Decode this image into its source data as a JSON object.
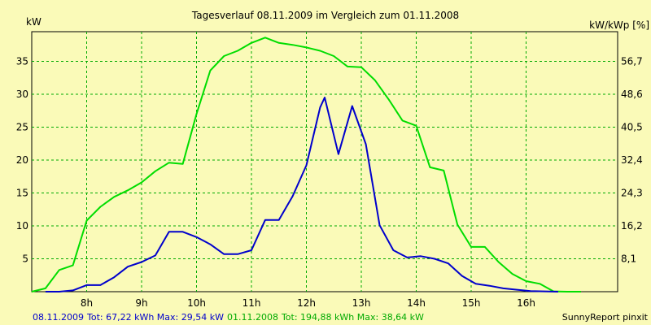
{
  "chart_data": {
    "type": "line",
    "title": "Tagesverlauf 08.11.2009 im Vergleich zum 01.11.2008",
    "ylabel_left": "kW",
    "ylabel_right": "kW/kWp [%]",
    "x_range": [
      "07:00",
      "17:40"
    ],
    "x_ticks": [
      "8h",
      "9h",
      "10h",
      "11h",
      "12h",
      "13h",
      "14h",
      "15h",
      "16h"
    ],
    "x_tick_hours": [
      8,
      9,
      10,
      11,
      12,
      13,
      14,
      15,
      16
    ],
    "ylim": [
      0,
      39.5
    ],
    "y_ticks_left": [
      5,
      10,
      15,
      20,
      25,
      30,
      35
    ],
    "y_ticks_right": [
      {
        "value": 5.0,
        "label": "8,1"
      },
      {
        "value": 10.0,
        "label": "16,2"
      },
      {
        "value": 15.0,
        "label": "24,3"
      },
      {
        "value": 20.0,
        "label": "32,4"
      },
      {
        "value": 25.0,
        "label": "40,5"
      },
      {
        "value": 30.0,
        "label": "48,6"
      },
      {
        "value": 35.0,
        "label": "56,7"
      }
    ],
    "grid": true,
    "series": [
      {
        "name": "08.11.2009",
        "color": "#0000CC",
        "x": [
          "07:15",
          "07:30",
          "07:45",
          "08:00",
          "08:15",
          "08:30",
          "08:45",
          "09:00",
          "09:15",
          "09:30",
          "09:45",
          "10:00",
          "10:15",
          "10:30",
          "10:45",
          "11:00",
          "11:15",
          "11:30",
          "11:45",
          "12:00",
          "12:15",
          "12:20",
          "12:35",
          "12:50",
          "13:05",
          "13:20",
          "13:35",
          "13:50",
          "14:05",
          "14:20",
          "14:35",
          "14:50",
          "15:05",
          "15:20",
          "15:35",
          "15:50",
          "16:05",
          "16:20",
          "16:35"
        ],
        "values": [
          0,
          0,
          0.2,
          1.0,
          1.0,
          2.2,
          3.8,
          4.5,
          5.5,
          9.1,
          9.1,
          8.3,
          7.2,
          5.7,
          5.7,
          6.3,
          10.9,
          10.9,
          14.5,
          19.2,
          28.0,
          29.5,
          20.9,
          28.2,
          22.4,
          10.1,
          6.3,
          5.2,
          5.4,
          5.0,
          4.3,
          2.4,
          1.2,
          0.9,
          0.5,
          0.3,
          0.1,
          0.05,
          0
        ]
      },
      {
        "name": "01.11.2008",
        "color": "#00DD00",
        "x": [
          "07:00",
          "07:15",
          "07:30",
          "07:45",
          "08:00",
          "08:15",
          "08:30",
          "08:45",
          "09:00",
          "09:15",
          "09:30",
          "09:45",
          "10:00",
          "10:15",
          "10:30",
          "10:45",
          "11:00",
          "11:15",
          "11:30",
          "11:45",
          "12:00",
          "12:15",
          "12:30",
          "12:45",
          "13:00",
          "13:15",
          "13:30",
          "13:45",
          "14:00",
          "14:15",
          "14:30",
          "14:45",
          "15:00",
          "15:15",
          "15:30",
          "15:45",
          "16:00",
          "16:15",
          "16:30",
          "16:45",
          "17:00"
        ],
        "values": [
          0,
          0.5,
          3.3,
          4.0,
          10.8,
          12.9,
          14.4,
          15.4,
          16.6,
          18.3,
          19.6,
          19.4,
          27.0,
          33.6,
          35.8,
          36.6,
          37.8,
          38.6,
          37.8,
          37.5,
          37.1,
          36.6,
          35.8,
          34.2,
          34.1,
          32.1,
          29.2,
          26.0,
          25.2,
          18.9,
          18.4,
          10.2,
          6.8,
          6.8,
          4.5,
          2.7,
          1.6,
          1.2,
          0.05,
          0,
          0
        ]
      }
    ]
  },
  "footer": {
    "series1_name": "08.11.2009",
    "series1_stats": "Tot: 67,22 kWh Max: 29,54 kW",
    "series2_name": "01.11.2008",
    "series2_stats": "Tot: 194,88 kWh Max: 38,64 kW",
    "credit": "SunnyReport pinxit"
  }
}
